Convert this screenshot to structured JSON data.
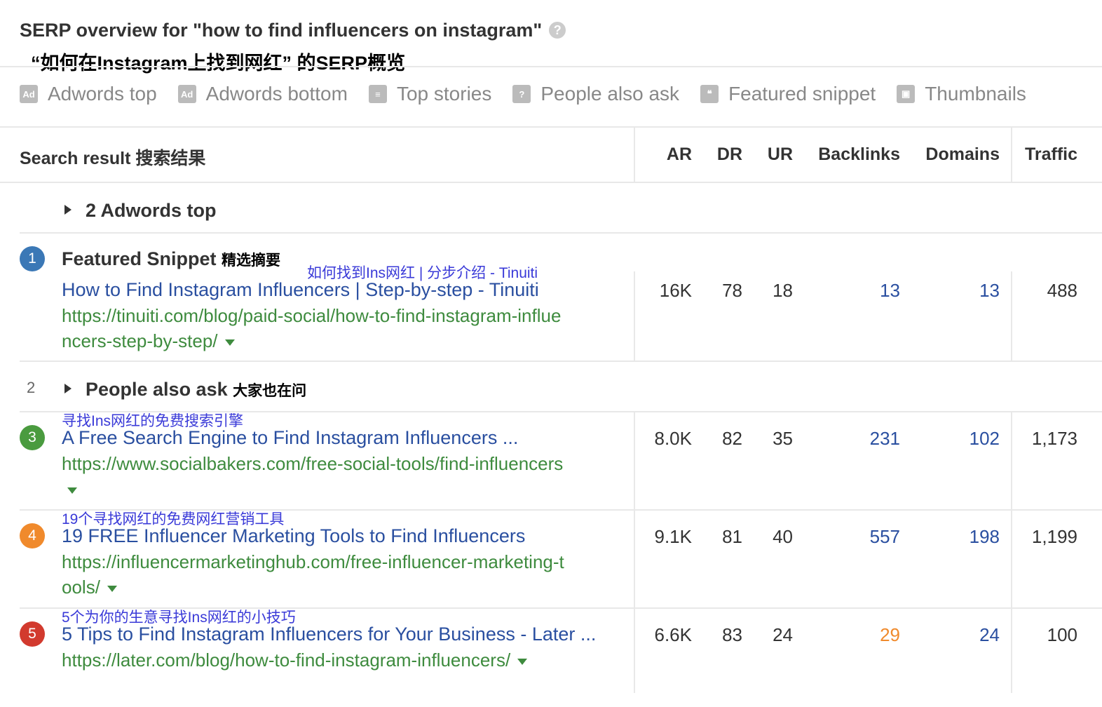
{
  "title": "SERP overview for \"how to find influencers on instagram\"",
  "title_cn": "“如何在Instagram上找到网红” 的SERP概览",
  "filters": [
    {
      "label": "Adwords top",
      "icon": "ad-icon"
    },
    {
      "label": "Adwords bottom",
      "icon": "ad-bottom-icon"
    },
    {
      "label": "Top stories",
      "icon": "news-icon"
    },
    {
      "label": "People also ask",
      "icon": "question-bubble-icon"
    },
    {
      "label": "Featured snippet",
      "icon": "quote-icon"
    },
    {
      "label": "Thumbnails",
      "icon": "image-icon"
    }
  ],
  "columns": {
    "result": "Search result 搜索结果",
    "ar": "AR",
    "dr": "DR",
    "ur": "UR",
    "backlinks": "Backlinks",
    "domains": "Domains",
    "traffic": "Traffic"
  },
  "adwords_top": "2 Adwords top",
  "featured": {
    "pos": "1",
    "label": "Featured Snippet",
    "label_cn": "精选摘要",
    "annotation": "如何找到Ins网红 | 分步介绍 - Tinuiti",
    "title": "How to Find Instagram Influencers | Step-by-step - Tinuiti",
    "url1": "https://tinuiti.com/blog/paid-social/how-to-find-instagram-influe",
    "url2": "ncers-step-by-step/",
    "ar": "16K",
    "dr": "78",
    "ur": "18",
    "backlinks": "13",
    "domains": "13",
    "traffic": "488",
    "color": "#3b78b6"
  },
  "paa": {
    "pos": "2",
    "label": "People also ask",
    "label_cn": "大家也在问"
  },
  "results": [
    {
      "pos": "3",
      "annotation": "寻找Ins网红的免费搜索引擎",
      "title": "A Free Search Engine to Find Instagram Influencers ...",
      "url1": "https://www.socialbakers.com/free-social-tools/find-influencers",
      "url2": "",
      "ar": "8.0K",
      "dr": "82",
      "ur": "35",
      "backlinks": "231",
      "domains": "102",
      "traffic": "1,173",
      "color": "#4a9b3f",
      "backlinks_color": "#2a4fa0"
    },
    {
      "pos": "4",
      "annotation": "19个寻找网红的免费网红营销工具",
      "title": "19 FREE Influencer Marketing Tools to Find Influencers",
      "url1": "https://influencermarketinghub.com/free-influencer-marketing-t",
      "url2": "ools/",
      "ar": "9.1K",
      "dr": "81",
      "ur": "40",
      "backlinks": "557",
      "domains": "198",
      "traffic": "1,199",
      "color": "#f08a2c",
      "backlinks_color": "#2a4fa0"
    },
    {
      "pos": "5",
      "annotation": "5个为你的生意寻找Ins网红的小技巧",
      "title": "5 Tips to Find Instagram Influencers for Your Business - Later ...",
      "url1": "https://later.com/blog/how-to-find-instagram-influencers/",
      "url2": "",
      "ar": "6.6K",
      "dr": "83",
      "ur": "24",
      "backlinks": "29",
      "domains": "24",
      "traffic": "100",
      "color": "#d23a2e",
      "backlinks_color": "#f08a2c"
    }
  ]
}
